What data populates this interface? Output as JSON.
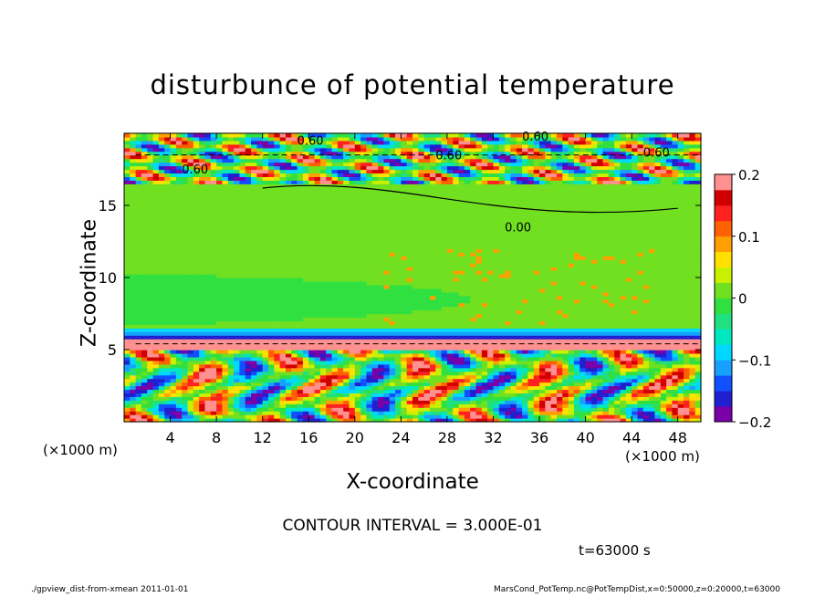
{
  "chart_data": {
    "type": "heatmap",
    "title": "disturbunce of potential temperature",
    "xlabel": "X-coordinate",
    "ylabel": "Z-coordinate",
    "x_unit": "(×1000 m)",
    "xlim": [
      0,
      50
    ],
    "ylim": [
      0,
      20
    ],
    "x_ticks": [
      4,
      8,
      12,
      16,
      20,
      24,
      28,
      32,
      36,
      40,
      44,
      48
    ],
    "y_ticks": [
      5,
      10,
      15
    ],
    "colorbar": {
      "range": [
        -0.2,
        0.2
      ],
      "tick_labels": [
        "0.2",
        "0.1",
        "0",
        "−0.1",
        "−0.2"
      ],
      "tick_values": [
        0.2,
        0.1,
        0,
        -0.1,
        -0.2
      ],
      "colors": [
        "#7a00a8",
        "#2020d0",
        "#1050ff",
        "#18a0ff",
        "#00d8ff",
        "#00e8c0",
        "#20e080",
        "#30e040",
        "#70e020",
        "#c8f000",
        "#ffe000",
        "#ffa000",
        "#ff6000",
        "#ff2020",
        "#d00000",
        "#ff9090"
      ]
    },
    "contour_labels": [
      "0.60",
      "0.00"
    ],
    "layers": [
      {
        "z": [
          17,
          20
        ],
        "description_value": "strong positive / negative alternating"
      },
      {
        "z": [
          16,
          17
        ],
        "value": 0.0
      },
      {
        "z": [
          6.5,
          16
        ],
        "value": 0.0
      },
      {
        "z": [
          5.8,
          6.5
        ],
        "value": -0.15
      },
      {
        "z": [
          0,
          5.8
        ],
        "value": "mixed ±0.2"
      }
    ]
  },
  "contour_interval": "CONTOUR INTERVAL = 3.000E-01",
  "time_label": "t=63000 s",
  "footer_left": "./gpview_dist-from-xmean   2011-01-01",
  "footer_right": "MarsCond_PotTemp.nc@PotTempDist,x=0:50000,z=0:20000,t=63000"
}
